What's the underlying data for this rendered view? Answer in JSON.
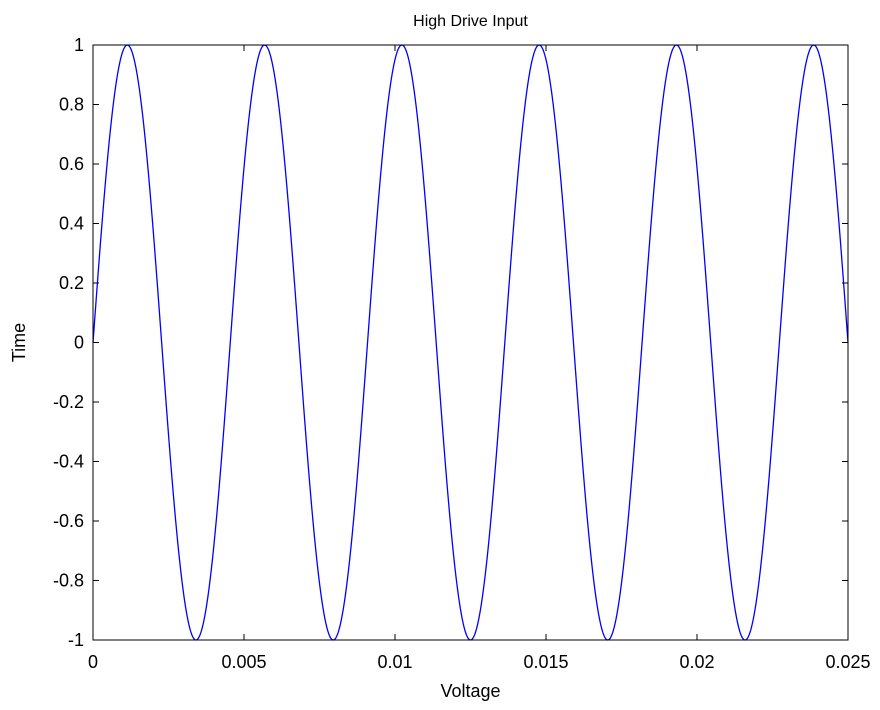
{
  "chart_data": {
    "type": "line",
    "title": "High Drive Input",
    "xlabel": "Voltage",
    "ylabel": "Time",
    "xlim": [
      0,
      0.025
    ],
    "ylim": [
      -1,
      1
    ],
    "xticks": [
      0,
      0.005,
      0.01,
      0.015,
      0.02,
      0.025
    ],
    "xtick_labels": [
      "0",
      "0.005",
      "0.01",
      "0.015",
      "0.02",
      "0.025"
    ],
    "yticks": [
      -1,
      -0.8,
      -0.6,
      -0.4,
      -0.2,
      0,
      0.2,
      0.4,
      0.6,
      0.8,
      1
    ],
    "ytick_labels": [
      "-1",
      "-0.8",
      "-0.6",
      "-0.4",
      "-0.2",
      "0",
      "0.2",
      "0.4",
      "0.6",
      "0.8",
      "1"
    ],
    "grid": false,
    "legend": "none",
    "series": [
      {
        "function": "sine",
        "amplitude": 1,
        "frequency_hz": 220,
        "phase": 0,
        "color": "#0000ff",
        "x_start": 0,
        "x_end": 0.025
      }
    ]
  }
}
